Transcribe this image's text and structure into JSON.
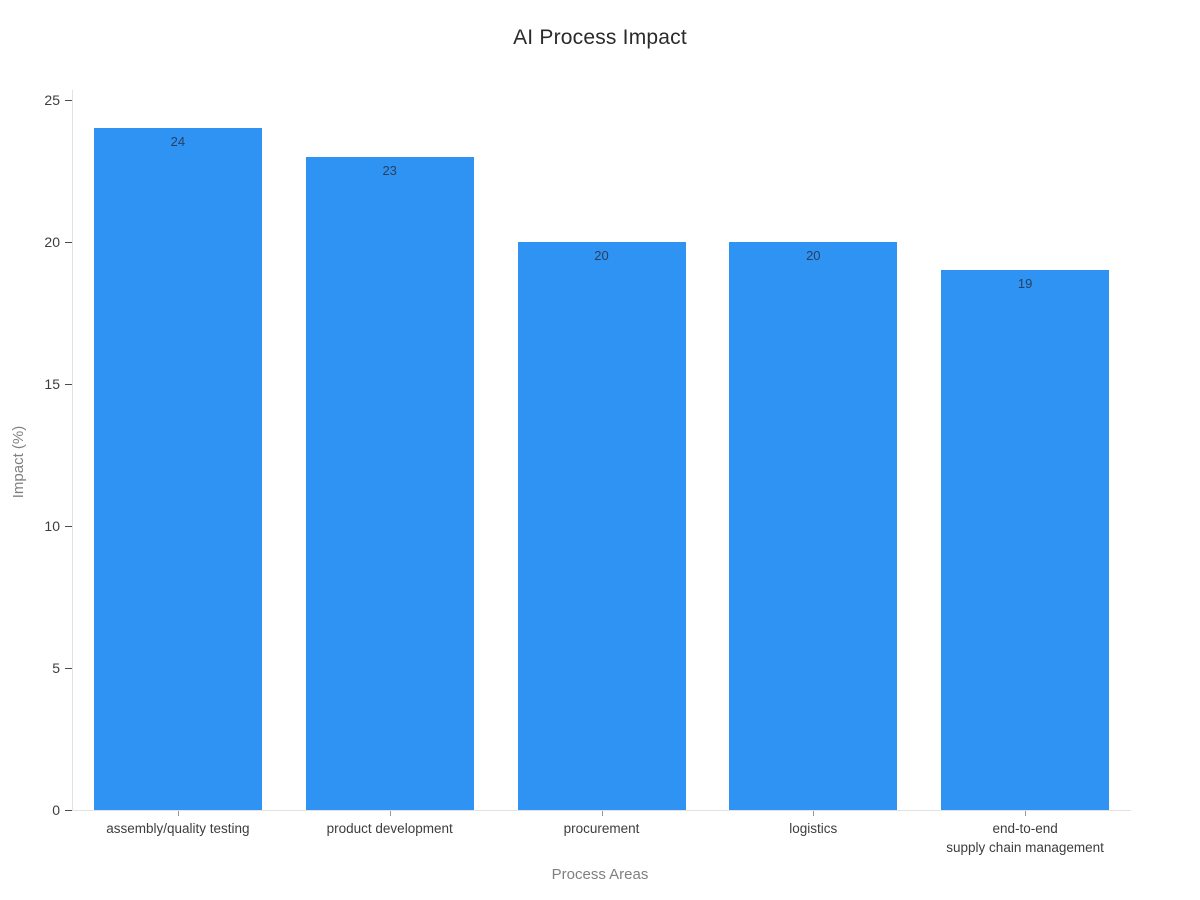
{
  "chart_data": {
    "type": "bar",
    "title": "AI Process Impact",
    "xlabel": "Process Areas",
    "ylabel": "Impact (%)",
    "categories": [
      "assembly/quality testing",
      "product development",
      "procurement",
      "logistics",
      "end-to-end\nsupply chain management"
    ],
    "values": [
      24,
      23,
      20,
      20,
      19
    ],
    "bar_value_labels": [
      "24",
      "23",
      "20",
      "20",
      "19"
    ],
    "yticks": [
      0,
      5,
      10,
      15,
      20,
      25
    ],
    "ylim": [
      0,
      25
    ],
    "grid": false,
    "legend": "none",
    "bar_color": "#2f93f3",
    "value_label_color": "#2a3f5f",
    "axis_line_color": "#e2e2e2"
  }
}
